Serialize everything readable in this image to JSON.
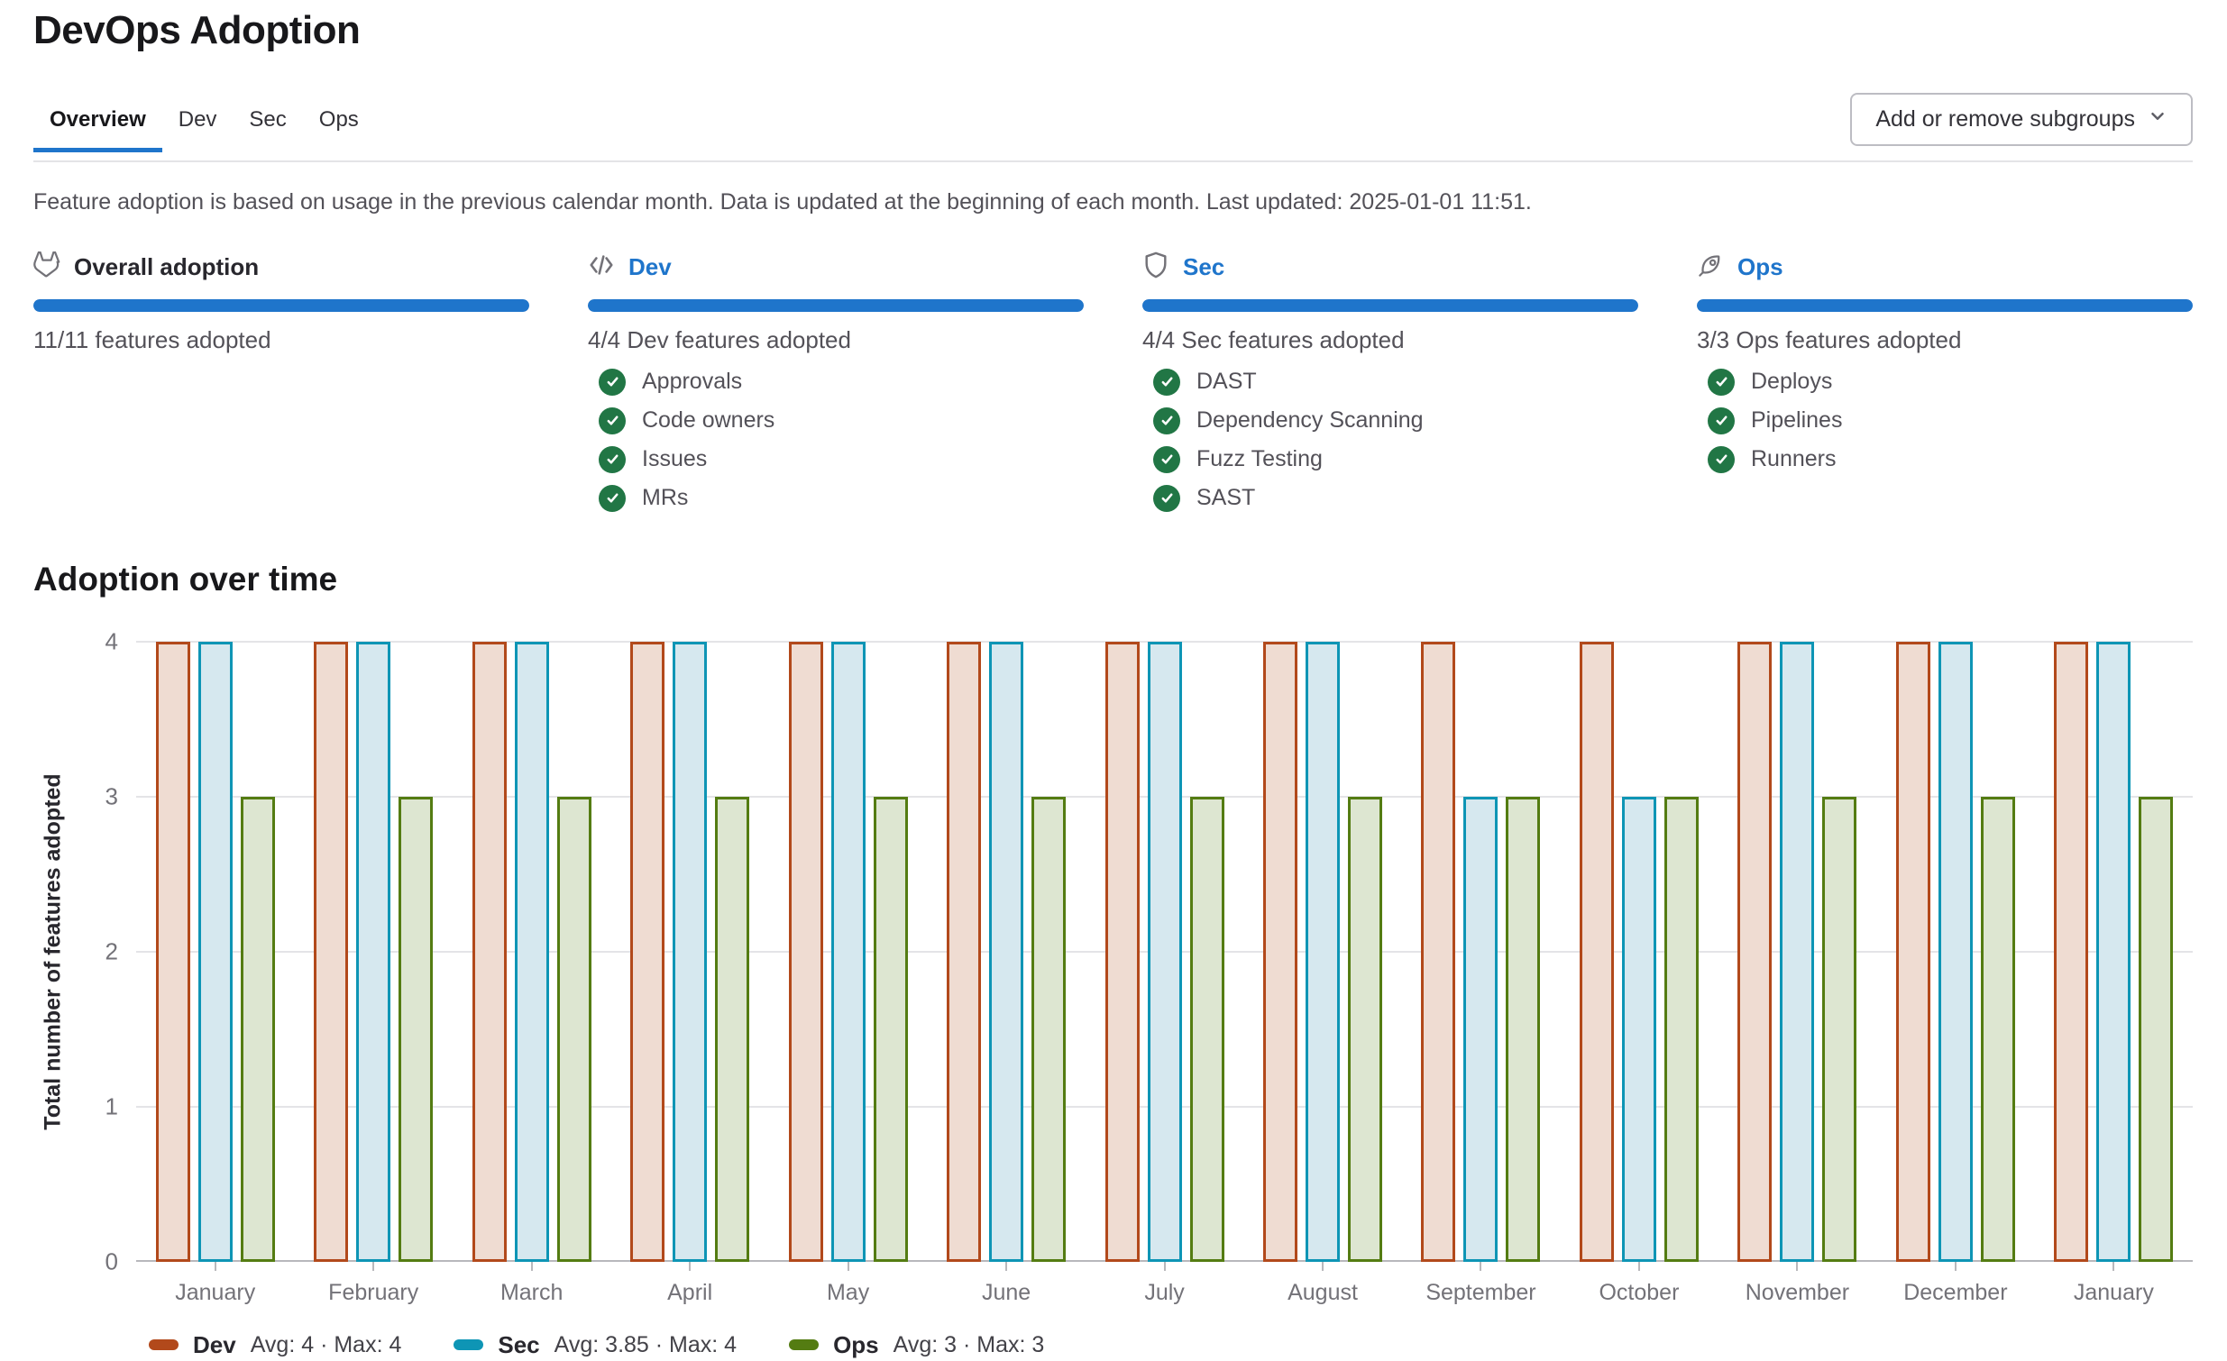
{
  "page_title": "DevOps Adoption",
  "tabs": [
    {
      "label": "Overview",
      "active": true
    },
    {
      "label": "Dev",
      "active": false
    },
    {
      "label": "Sec",
      "active": false
    },
    {
      "label": "Ops",
      "active": false
    }
  ],
  "toolbar": {
    "add_remove_button": "Add or remove subgroups"
  },
  "info_text": "Feature adoption is based on usage in the previous calendar month. Data is updated at the beginning of each month. Last updated: 2025-01-01 11:51.",
  "colors": {
    "link_blue": "#1f75cb",
    "progress_blue": "#1f75cb",
    "check_green": "#217645"
  },
  "cards": [
    {
      "id": "overall",
      "title": "Overall adoption",
      "icon": "tanuki-icon",
      "title_is_link": false,
      "progress_pct": 100,
      "summary": "11/11 features adopted",
      "features": []
    },
    {
      "id": "dev",
      "title": "Dev",
      "icon": "code-icon",
      "title_is_link": true,
      "progress_pct": 100,
      "summary": "4/4 Dev features adopted",
      "features": [
        "Approvals",
        "Code owners",
        "Issues",
        "MRs"
      ]
    },
    {
      "id": "sec",
      "title": "Sec",
      "icon": "shield-icon",
      "title_is_link": true,
      "progress_pct": 100,
      "summary": "4/4 Sec features adopted",
      "features": [
        "DAST",
        "Dependency Scanning",
        "Fuzz Testing",
        "SAST"
      ]
    },
    {
      "id": "ops",
      "title": "Ops",
      "icon": "rocket-icon",
      "title_is_link": true,
      "progress_pct": 100,
      "summary": "3/3 Ops features adopted",
      "features": [
        "Deploys",
        "Pipelines",
        "Runners"
      ]
    }
  ],
  "section_title": "Adoption over time",
  "chart_data": {
    "type": "bar",
    "title": "Adoption over time",
    "categories": [
      "January",
      "February",
      "March",
      "April",
      "May",
      "June",
      "July",
      "August",
      "September",
      "October",
      "November",
      "December",
      "January"
    ],
    "series": [
      {
        "name": "Dev",
        "values": [
          4,
          4,
          4,
          4,
          4,
          4,
          4,
          4,
          4,
          4,
          4,
          4,
          4
        ],
        "border_color": "#b2491b",
        "fill_color": "#efdcd2",
        "legend_stats": "Avg: 4 · Max: 4"
      },
      {
        "name": "Sec",
        "values": [
          4,
          4,
          4,
          4,
          4,
          4,
          4,
          4,
          3,
          3,
          4,
          4,
          4
        ],
        "border_color": "#0e95b5",
        "fill_color": "#d6e8ef",
        "legend_stats": "Avg: 3.85 · Max: 4"
      },
      {
        "name": "Ops",
        "values": [
          3,
          3,
          3,
          3,
          3,
          3,
          3,
          3,
          3,
          3,
          3,
          3,
          3
        ],
        "border_color": "#547c12",
        "fill_color": "#dde6d1",
        "legend_stats": "Avg: 3 · Max: 3"
      }
    ],
    "ylabel": "Total number of features adopted",
    "ylim": [
      0,
      4
    ],
    "yticks": [
      0,
      1,
      2,
      3,
      4
    ],
    "grid": true,
    "legend_position": "bottom-left"
  }
}
